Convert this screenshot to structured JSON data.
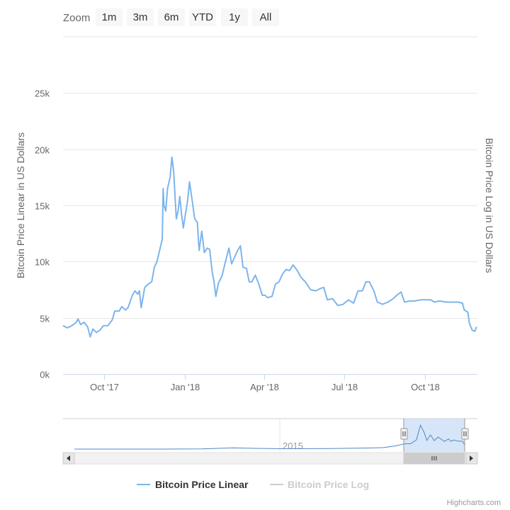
{
  "zoom": {
    "label": "Zoom",
    "buttons": [
      "1m",
      "3m",
      "6m",
      "YTD",
      "1y",
      "All"
    ]
  },
  "credit": "Highcharts.com",
  "colors": {
    "series_linear": "#7cb5ec",
    "series_log": "#cccccc",
    "navigator_mask": "#cfe2f7",
    "grid": "#e6e6e6"
  },
  "chart_data": {
    "type": "line",
    "title": "",
    "ylabel_left": "Bitcoin Price Linear in US Dollars",
    "ylabel_right": "Bitcoin Price Log in US Dollars",
    "xlabel": "",
    "ylim": [
      0,
      30000
    ],
    "yticks": [
      {
        "value": 0,
        "label": "0k"
      },
      {
        "value": 5000,
        "label": "5k"
      },
      {
        "value": 10000,
        "label": "10k"
      },
      {
        "value": 15000,
        "label": "15k"
      },
      {
        "value": 20000,
        "label": "20k"
      },
      {
        "value": 25000,
        "label": "25k"
      }
    ],
    "xlim": [
      "2017-08-15",
      "2018-11-30"
    ],
    "xticks": [
      {
        "value": "2017-10-01",
        "label": "Oct '17"
      },
      {
        "value": "2018-01-01",
        "label": "Jan '18"
      },
      {
        "value": "2018-04-01",
        "label": "Apr '18"
      },
      {
        "value": "2018-07-01",
        "label": "Jul '18"
      },
      {
        "value": "2018-10-01",
        "label": "Oct '18"
      }
    ],
    "grid": true,
    "legend_position": "bottom-center",
    "series": [
      {
        "name": "Bitcoin Price Linear",
        "visible": true,
        "points": [
          [
            "2017-08-15",
            4300
          ],
          [
            "2017-08-20",
            4100
          ],
          [
            "2017-08-25",
            4300
          ],
          [
            "2017-08-30",
            4600
          ],
          [
            "2017-09-01",
            4900
          ],
          [
            "2017-09-04",
            4400
          ],
          [
            "2017-09-08",
            4600
          ],
          [
            "2017-09-12",
            4200
          ],
          [
            "2017-09-15",
            3300
          ],
          [
            "2017-09-18",
            4000
          ],
          [
            "2017-09-22",
            3700
          ],
          [
            "2017-09-26",
            3900
          ],
          [
            "2017-09-30",
            4300
          ],
          [
            "2017-10-05",
            4300
          ],
          [
            "2017-10-10",
            4800
          ],
          [
            "2017-10-13",
            5600
          ],
          [
            "2017-10-18",
            5600
          ],
          [
            "2017-10-21",
            6000
          ],
          [
            "2017-10-25",
            5700
          ],
          [
            "2017-10-28",
            5900
          ],
          [
            "2017-11-02",
            7000
          ],
          [
            "2017-11-05",
            7400
          ],
          [
            "2017-11-08",
            7100
          ],
          [
            "2017-11-10",
            7400
          ],
          [
            "2017-11-12",
            5900
          ],
          [
            "2017-11-16",
            7700
          ],
          [
            "2017-11-20",
            8000
          ],
          [
            "2017-11-24",
            8200
          ],
          [
            "2017-11-27",
            9500
          ],
          [
            "2017-11-30",
            10000
          ],
          [
            "2017-12-03",
            11000
          ],
          [
            "2017-12-06",
            12000
          ],
          [
            "2017-12-07",
            16500
          ],
          [
            "2017-12-08",
            15000
          ],
          [
            "2017-12-10",
            14500
          ],
          [
            "2017-12-12",
            16500
          ],
          [
            "2017-12-15",
            17500
          ],
          [
            "2017-12-17",
            19300
          ],
          [
            "2017-12-19",
            18000
          ],
          [
            "2017-12-22",
            13800
          ],
          [
            "2017-12-24",
            14500
          ],
          [
            "2017-12-26",
            15800
          ],
          [
            "2017-12-28",
            14200
          ],
          [
            "2017-12-30",
            13000
          ],
          [
            "2018-01-02",
            14500
          ],
          [
            "2018-01-04",
            15500
          ],
          [
            "2018-01-06",
            17100
          ],
          [
            "2018-01-09",
            15500
          ],
          [
            "2018-01-12",
            13800
          ],
          [
            "2018-01-15",
            13500
          ],
          [
            "2018-01-17",
            11000
          ],
          [
            "2018-01-20",
            12700
          ],
          [
            "2018-01-23",
            10800
          ],
          [
            "2018-01-26",
            11200
          ],
          [
            "2018-01-29",
            11100
          ],
          [
            "2018-02-01",
            9000
          ],
          [
            "2018-02-03",
            8200
          ],
          [
            "2018-02-05",
            6900
          ],
          [
            "2018-02-08",
            8100
          ],
          [
            "2018-02-12",
            8700
          ],
          [
            "2018-02-16",
            10000
          ],
          [
            "2018-02-20",
            11200
          ],
          [
            "2018-02-23",
            9800
          ],
          [
            "2018-02-27",
            10500
          ],
          [
            "2018-03-02",
            11000
          ],
          [
            "2018-03-05",
            11400
          ],
          [
            "2018-03-08",
            9500
          ],
          [
            "2018-03-12",
            9400
          ],
          [
            "2018-03-15",
            8200
          ],
          [
            "2018-03-18",
            8200
          ],
          [
            "2018-03-22",
            8800
          ],
          [
            "2018-03-26",
            8000
          ],
          [
            "2018-03-30",
            7000
          ],
          [
            "2018-04-02",
            7000
          ],
          [
            "2018-04-05",
            6800
          ],
          [
            "2018-04-10",
            6900
          ],
          [
            "2018-04-14",
            8000
          ],
          [
            "2018-04-18",
            8200
          ],
          [
            "2018-04-22",
            8900
          ],
          [
            "2018-04-26",
            9300
          ],
          [
            "2018-04-30",
            9200
          ],
          [
            "2018-05-04",
            9700
          ],
          [
            "2018-05-08",
            9300
          ],
          [
            "2018-05-13",
            8600
          ],
          [
            "2018-05-18",
            8200
          ],
          [
            "2018-05-24",
            7500
          ],
          [
            "2018-05-30",
            7400
          ],
          [
            "2018-06-04",
            7600
          ],
          [
            "2018-06-08",
            7700
          ],
          [
            "2018-06-12",
            6600
          ],
          [
            "2018-06-18",
            6700
          ],
          [
            "2018-06-24",
            6100
          ],
          [
            "2018-06-30",
            6200
          ],
          [
            "2018-07-06",
            6600
          ],
          [
            "2018-07-12",
            6300
          ],
          [
            "2018-07-17",
            7400
          ],
          [
            "2018-07-22",
            7400
          ],
          [
            "2018-07-26",
            8200
          ],
          [
            "2018-07-30",
            8200
          ],
          [
            "2018-08-04",
            7400
          ],
          [
            "2018-08-08",
            6400
          ],
          [
            "2018-08-14",
            6200
          ],
          [
            "2018-08-20",
            6400
          ],
          [
            "2018-08-26",
            6700
          ],
          [
            "2018-08-30",
            7000
          ],
          [
            "2018-09-04",
            7300
          ],
          [
            "2018-09-08",
            6400
          ],
          [
            "2018-09-14",
            6500
          ],
          [
            "2018-09-20",
            6500
          ],
          [
            "2018-09-26",
            6600
          ],
          [
            "2018-10-02",
            6600
          ],
          [
            "2018-10-08",
            6600
          ],
          [
            "2018-10-12",
            6400
          ],
          [
            "2018-10-18",
            6500
          ],
          [
            "2018-10-25",
            6400
          ],
          [
            "2018-11-01",
            6400
          ],
          [
            "2018-11-08",
            6400
          ],
          [
            "2018-11-13",
            6300
          ],
          [
            "2018-11-15",
            5700
          ],
          [
            "2018-11-19",
            5500
          ],
          [
            "2018-11-21",
            4500
          ],
          [
            "2018-11-24",
            3900
          ],
          [
            "2018-11-27",
            3800
          ],
          [
            "2018-11-29",
            4200
          ]
        ]
      },
      {
        "name": "Bitcoin Price Log",
        "visible": false,
        "points": []
      }
    ],
    "navigator": {
      "xtick_label": "2015",
      "xlim": [
        "2010-07-01",
        "2018-11-30"
      ],
      "selected_range": [
        "2017-08-15",
        "2018-11-30"
      ],
      "points": [
        [
          "2010-07-01",
          0
        ],
        [
          "2011-06-01",
          20
        ],
        [
          "2012-06-01",
          7
        ],
        [
          "2013-04-01",
          150
        ],
        [
          "2013-12-01",
          1000
        ],
        [
          "2014-06-01",
          600
        ],
        [
          "2015-01-01",
          300
        ],
        [
          "2016-01-01",
          430
        ],
        [
          "2016-12-01",
          900
        ],
        [
          "2017-03-01",
          1200
        ],
        [
          "2017-06-01",
          2500
        ],
        [
          "2017-08-15",
          4300
        ],
        [
          "2017-10-01",
          4300
        ],
        [
          "2017-11-15",
          7500
        ],
        [
          "2017-12-17",
          19300
        ],
        [
          "2018-01-15",
          13500
        ],
        [
          "2018-02-05",
          6900
        ],
        [
          "2018-03-05",
          11400
        ],
        [
          "2018-04-05",
          6800
        ],
        [
          "2018-05-04",
          9700
        ],
        [
          "2018-06-24",
          6100
        ],
        [
          "2018-07-26",
          8200
        ],
        [
          "2018-08-14",
          6200
        ],
        [
          "2018-09-04",
          7300
        ],
        [
          "2018-10-12",
          6400
        ],
        [
          "2018-11-13",
          6300
        ],
        [
          "2018-11-27",
          3800
        ],
        [
          "2018-11-30",
          4000
        ]
      ]
    }
  }
}
